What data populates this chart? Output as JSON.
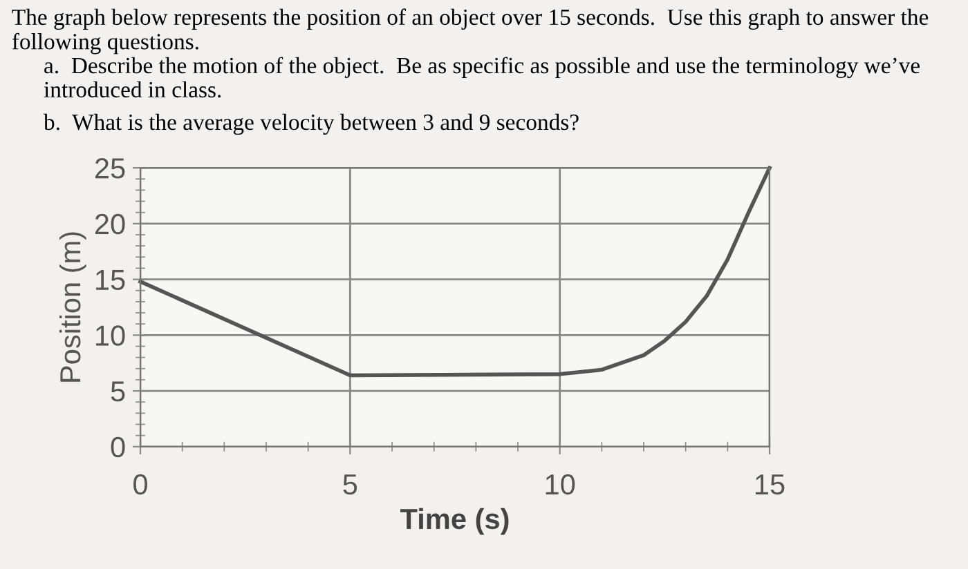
{
  "chart_data": {
    "type": "line",
    "title": "The graph below represents the position of an object over 15 seconds.  Use this graph to answer the following questions.",
    "annotations": [
      "a.  Describe the motion of the object.  Be as specific as possible and use the terminology we’ve introduced in class.",
      "b.  What is the average velocity between 3 and 9 seconds?"
    ],
    "xlabel": "Time (s)",
    "ylabel": "Position (m)",
    "x": [
      0,
      5,
      10,
      11,
      12,
      12.5,
      13,
      13.5,
      14,
      14.5,
      15
    ],
    "series": [
      {
        "color": "#555555",
        "values": [
          14.8,
          6.4,
          6.5,
          6.9,
          8.2,
          9.5,
          11.2,
          13.5,
          16.8,
          21,
          25
        ]
      }
    ],
    "xlim": [
      0,
      15
    ],
    "ylim": [
      0,
      25
    ],
    "xticks": [
      0,
      5,
      10,
      15
    ],
    "yticks": [
      0,
      5,
      10,
      15,
      20,
      25
    ],
    "grid": true,
    "marker": "none",
    "line_style": "solid"
  }
}
